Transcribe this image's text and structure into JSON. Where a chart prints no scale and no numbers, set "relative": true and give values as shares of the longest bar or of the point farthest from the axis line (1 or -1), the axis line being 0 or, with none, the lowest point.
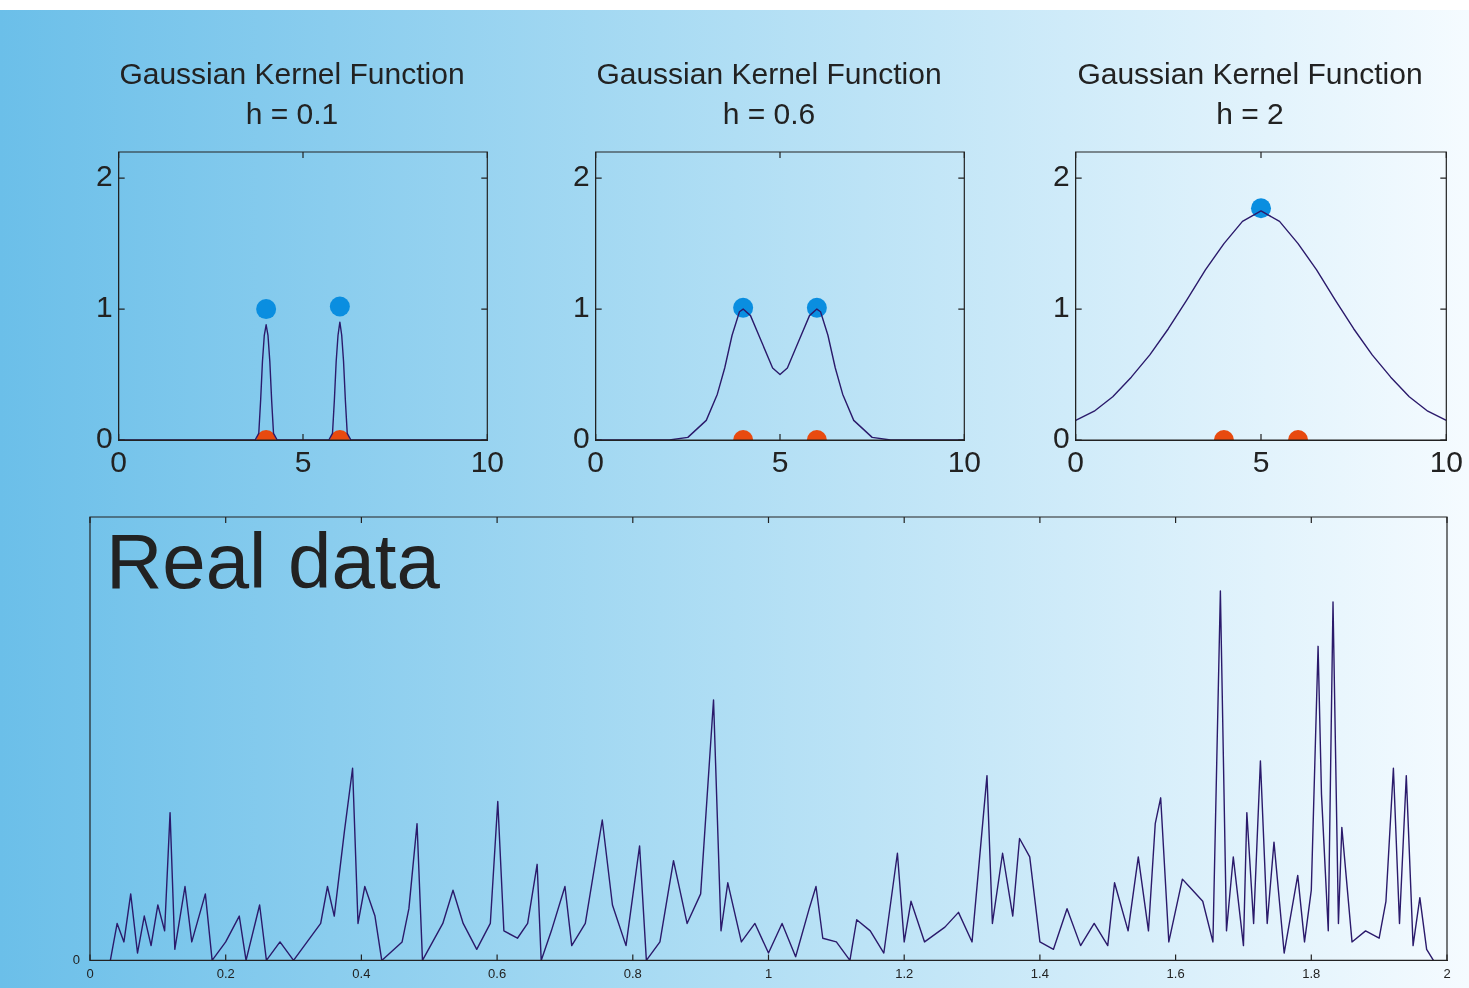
{
  "chart_data": [
    {
      "type": "line",
      "title": "Gaussian Kernel Function",
      "subtitle": "h = 0.1",
      "xlim": [
        0,
        10
      ],
      "xticks": [
        0,
        5,
        10
      ],
      "ylim": [
        0,
        2.2
      ],
      "yticks": [
        0,
        1,
        2
      ],
      "grid": false,
      "legend": false,
      "series": [
        {
          "type": "line",
          "marker": "none",
          "color": "#2b1a6b",
          "x": [
            0,
            3.7,
            3.8,
            3.85,
            3.9,
            3.95,
            4,
            4.05,
            4.1,
            4.15,
            4.2,
            4.3,
            5.7,
            5.8,
            5.85,
            5.9,
            5.95,
            6,
            6.05,
            6.1,
            6.15,
            6.2,
            6.3,
            10
          ],
          "values": [
            0,
            0,
            0.05,
            0.3,
            0.6,
            0.8,
            0.88,
            0.8,
            0.6,
            0.3,
            0.05,
            0,
            0,
            0.05,
            0.3,
            0.6,
            0.8,
            0.9,
            0.8,
            0.6,
            0.3,
            0.05,
            0,
            0
          ]
        },
        {
          "type": "scatter",
          "marker": "circle",
          "color": "#0a8ee0",
          "x": [
            4,
            6
          ],
          "values": [
            1.0,
            1.02
          ]
        },
        {
          "type": "scatter",
          "marker": "circle",
          "color": "#e84a0f",
          "x": [
            4,
            6
          ],
          "values": [
            0,
            0
          ]
        }
      ]
    },
    {
      "type": "line",
      "title": "Gaussian Kernel Function",
      "subtitle": "h = 0.6",
      "xlim": [
        0,
        10
      ],
      "xticks": [
        0,
        5,
        10
      ],
      "ylim": [
        0,
        2.2
      ],
      "yticks": [
        0,
        1,
        2
      ],
      "grid": false,
      "legend": false,
      "series": [
        {
          "type": "line",
          "marker": "none",
          "color": "#2b1a6b",
          "x": [
            0,
            2,
            2.5,
            3,
            3.3,
            3.5,
            3.7,
            3.9,
            4,
            4.2,
            4.5,
            4.8,
            5,
            5.2,
            5.5,
            5.8,
            6,
            6.1,
            6.3,
            6.5,
            6.7,
            7,
            7.5,
            8,
            10
          ],
          "values": [
            0,
            0,
            0.02,
            0.15,
            0.35,
            0.55,
            0.8,
            0.98,
            1.0,
            0.95,
            0.75,
            0.55,
            0.5,
            0.55,
            0.75,
            0.95,
            1.0,
            0.98,
            0.8,
            0.55,
            0.35,
            0.15,
            0.02,
            0,
            0
          ]
        },
        {
          "type": "scatter",
          "marker": "circle",
          "color": "#0a8ee0",
          "x": [
            4,
            6
          ],
          "values": [
            1.01,
            1.01
          ]
        },
        {
          "type": "scatter",
          "marker": "circle",
          "color": "#e84a0f",
          "x": [
            4,
            6
          ],
          "values": [
            0,
            0
          ]
        }
      ]
    },
    {
      "type": "line",
      "title": "Gaussian Kernel Function",
      "subtitle": "h = 2",
      "xlim": [
        0,
        10
      ],
      "xticks": [
        0,
        5,
        10
      ],
      "ylim": [
        0,
        2.2
      ],
      "yticks": [
        0,
        1,
        2
      ],
      "grid": false,
      "legend": false,
      "series": [
        {
          "type": "line",
          "marker": "none",
          "color": "#2b1a6b",
          "x": [
            0,
            0.5,
            1,
            1.5,
            2,
            2.5,
            3,
            3.5,
            4,
            4.5,
            5,
            5.5,
            6,
            6.5,
            7,
            7.5,
            8,
            8.5,
            9,
            9.5,
            10
          ],
          "values": [
            0.15,
            0.22,
            0.33,
            0.48,
            0.65,
            0.85,
            1.07,
            1.3,
            1.5,
            1.67,
            1.75,
            1.67,
            1.5,
            1.3,
            1.07,
            0.85,
            0.65,
            0.48,
            0.33,
            0.22,
            0.15
          ]
        },
        {
          "type": "scatter",
          "marker": "circle",
          "color": "#0a8ee0",
          "x": [
            5
          ],
          "values": [
            1.77
          ]
        },
        {
          "type": "scatter",
          "marker": "circle",
          "color": "#e84a0f",
          "x": [
            4,
            6
          ],
          "values": [
            0,
            0
          ]
        }
      ]
    },
    {
      "type": "line",
      "title": "Real data",
      "relative": true,
      "xlim": [
        0,
        2
      ],
      "xticks": [
        0,
        0.2,
        0.4,
        0.6,
        0.8,
        1,
        1.2,
        1.4,
        1.6,
        1.8,
        2
      ],
      "grid": false,
      "legend": false,
      "annotations": [
        "0"
      ],
      "series": [
        {
          "type": "line",
          "marker": "none",
          "color": "#2b1a6b",
          "x": [
            0.03,
            0.04,
            0.05,
            0.06,
            0.07,
            0.08,
            0.09,
            0.1,
            0.11,
            0.118,
            0.125,
            0.14,
            0.15,
            0.17,
            0.18,
            0.2,
            0.22,
            0.23,
            0.25,
            0.26,
            0.28,
            0.3,
            0.32,
            0.34,
            0.35,
            0.36,
            0.375,
            0.387,
            0.395,
            0.405,
            0.42,
            0.43,
            0.46,
            0.47,
            0.482,
            0.49,
            0.52,
            0.535,
            0.55,
            0.57,
            0.59,
            0.601,
            0.61,
            0.63,
            0.645,
            0.659,
            0.665,
            0.68,
            0.7,
            0.71,
            0.73,
            0.755,
            0.77,
            0.79,
            0.81,
            0.82,
            0.84,
            0.86,
            0.88,
            0.9,
            0.919,
            0.93,
            0.94,
            0.96,
            0.98,
            1.0,
            1.02,
            1.04,
            1.06,
            1.07,
            1.08,
            1.1,
            1.12,
            1.13,
            1.15,
            1.17,
            1.19,
            1.2,
            1.21,
            1.23,
            1.26,
            1.28,
            1.3,
            1.322,
            1.33,
            1.345,
            1.36,
            1.37,
            1.385,
            1.4,
            1.42,
            1.44,
            1.46,
            1.48,
            1.5,
            1.51,
            1.53,
            1.545,
            1.56,
            1.57,
            1.578,
            1.59,
            1.61,
            1.62,
            1.64,
            1.655,
            1.666,
            1.675,
            1.685,
            1.7,
            1.705,
            1.715,
            1.725,
            1.735,
            1.745,
            1.76,
            1.78,
            1.79,
            1.8,
            1.81,
            1.815,
            1.825,
            1.832,
            1.84,
            1.845,
            1.86,
            1.88,
            1.9,
            1.91,
            1.921,
            1.93,
            1.94,
            1.95,
            1.96,
            1.97,
            1.98
          ],
          "values": [
            0,
            0.1,
            0.05,
            0.18,
            0.02,
            0.12,
            0.04,
            0.15,
            0.08,
            0.4,
            0.03,
            0.2,
            0.05,
            0.18,
            0,
            0.05,
            0.12,
            0,
            0.15,
            0,
            0.05,
            0,
            0.05,
            0.1,
            0.2,
            0.12,
            0.35,
            0.52,
            0.1,
            0.2,
            0.12,
            0,
            0.05,
            0.14,
            0.37,
            0,
            0.1,
            0.19,
            0.1,
            0.03,
            0.1,
            0.43,
            0.08,
            0.06,
            0.1,
            0.26,
            0,
            0.08,
            0.2,
            0.04,
            0.1,
            0.38,
            0.15,
            0.04,
            0.31,
            0,
            0.05,
            0.27,
            0.1,
            0.18,
            0.705,
            0.08,
            0.21,
            0.05,
            0.1,
            0.02,
            0.1,
            0.01,
            0.14,
            0.2,
            0.06,
            0.05,
            0,
            0.11,
            0.08,
            0.02,
            0.29,
            0.05,
            0.16,
            0.05,
            0.09,
            0.13,
            0.05,
            0.5,
            0.1,
            0.29,
            0.12,
            0.33,
            0.28,
            0.05,
            0.03,
            0.14,
            0.04,
            0.1,
            0.04,
            0.21,
            0.08,
            0.28,
            0.08,
            0.37,
            0.44,
            0.05,
            0.22,
            0.2,
            0.16,
            0.05,
            1.0,
            0.08,
            0.28,
            0.04,
            0.4,
            0.1,
            0.54,
            0.1,
            0.32,
            0.02,
            0.23,
            0.05,
            0.19,
            0.85,
            0.45,
            0.08,
            0.97,
            0.1,
            0.36,
            0.05,
            0.08,
            0.06,
            0.16,
            0.52,
            0.1,
            0.5,
            0.04,
            0.17,
            0.03,
            0
          ]
        }
      ]
    }
  ]
}
